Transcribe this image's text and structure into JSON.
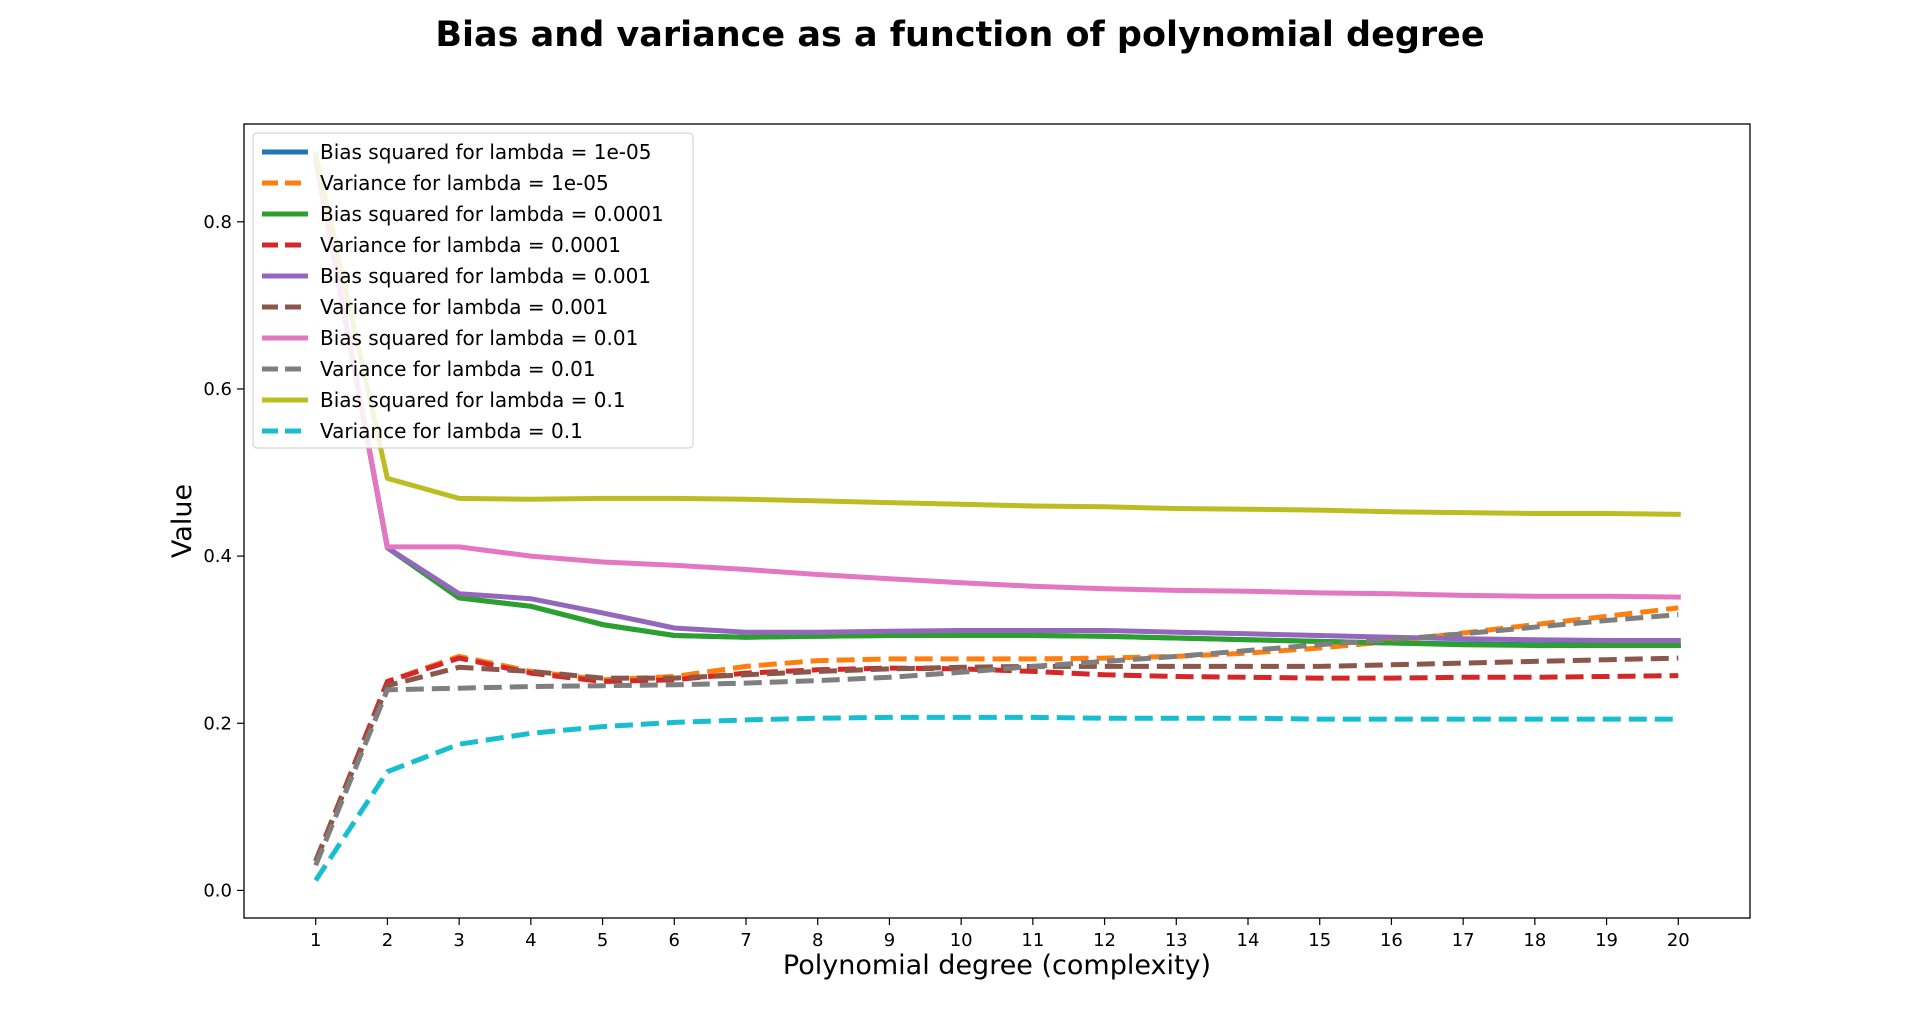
{
  "chart_data": {
    "type": "line",
    "title": "Bias and variance as a function of polynomial degree",
    "xlabel": "Polynomial degree (complexity)",
    "ylabel": "Value",
    "x": [
      1,
      2,
      3,
      4,
      5,
      6,
      7,
      8,
      9,
      10,
      11,
      12,
      13,
      14,
      15,
      16,
      17,
      18,
      19,
      20
    ],
    "xlim": [
      0.0,
      21.0
    ],
    "ylim": [
      -0.033,
      0.917
    ],
    "yticks": [
      0.0,
      0.2,
      0.4,
      0.6,
      0.8
    ],
    "ytick_labels": [
      "0.0",
      "0.2",
      "0.4",
      "0.6",
      "0.8"
    ],
    "xticks": [
      1,
      2,
      3,
      4,
      5,
      6,
      7,
      8,
      9,
      10,
      11,
      12,
      13,
      14,
      15,
      16,
      17,
      18,
      19,
      20
    ],
    "xtick_labels": [
      "1",
      "2",
      "3",
      "4",
      "5",
      "6",
      "7",
      "8",
      "9",
      "10",
      "11",
      "12",
      "13",
      "14",
      "15",
      "16",
      "17",
      "18",
      "19",
      "20"
    ],
    "grid": false,
    "legend_position": "upper-left",
    "series": [
      {
        "name": "Bias squared for lambda = 1e-05",
        "color": "#1f77b4",
        "style": "solid",
        "values": [
          0.875,
          0.41,
          0.35,
          0.34,
          0.318,
          0.305,
          0.303,
          0.304,
          0.305,
          0.305,
          0.305,
          0.304,
          0.302,
          0.3,
          0.298,
          0.296,
          0.295,
          0.294,
          0.294,
          0.293
        ]
      },
      {
        "name": "Variance for lambda = 1e-05",
        "color": "#ff7f0e",
        "style": "dashed",
        "values": [
          0.035,
          0.25,
          0.28,
          0.262,
          0.252,
          0.256,
          0.268,
          0.275,
          0.277,
          0.277,
          0.277,
          0.278,
          0.28,
          0.284,
          0.29,
          0.298,
          0.308,
          0.318,
          0.328,
          0.338
        ]
      },
      {
        "name": "Bias squared for lambda = 0.0001",
        "color": "#2ca02c",
        "style": "solid",
        "values": [
          0.875,
          0.41,
          0.35,
          0.34,
          0.318,
          0.305,
          0.303,
          0.304,
          0.305,
          0.305,
          0.305,
          0.304,
          0.302,
          0.3,
          0.298,
          0.296,
          0.294,
          0.293,
          0.293,
          0.293
        ]
      },
      {
        "name": "Variance for lambda = 0.0001",
        "color": "#d62728",
        "style": "dashed",
        "values": [
          0.035,
          0.25,
          0.278,
          0.26,
          0.25,
          0.252,
          0.26,
          0.264,
          0.266,
          0.265,
          0.262,
          0.258,
          0.256,
          0.255,
          0.254,
          0.254,
          0.255,
          0.255,
          0.256,
          0.257
        ]
      },
      {
        "name": "Bias squared for lambda = 0.001",
        "color": "#9467bd",
        "style": "solid",
        "values": [
          0.875,
          0.41,
          0.355,
          0.349,
          0.332,
          0.314,
          0.309,
          0.309,
          0.31,
          0.311,
          0.311,
          0.311,
          0.309,
          0.307,
          0.305,
          0.303,
          0.301,
          0.3,
          0.299,
          0.299
        ]
      },
      {
        "name": "Variance for lambda = 0.001",
        "color": "#8c564b",
        "style": "dashed",
        "values": [
          0.035,
          0.245,
          0.267,
          0.262,
          0.254,
          0.254,
          0.258,
          0.262,
          0.265,
          0.267,
          0.268,
          0.268,
          0.268,
          0.268,
          0.268,
          0.27,
          0.272,
          0.274,
          0.276,
          0.278
        ]
      },
      {
        "name": "Bias squared for lambda = 0.01",
        "color": "#e377c2",
        "style": "solid",
        "values": [
          0.875,
          0.411,
          0.411,
          0.4,
          0.393,
          0.389,
          0.384,
          0.378,
          0.373,
          0.368,
          0.364,
          0.361,
          0.359,
          0.358,
          0.356,
          0.355,
          0.353,
          0.352,
          0.352,
          0.351
        ]
      },
      {
        "name": "Variance for lambda = 0.01",
        "color": "#7f7f7f",
        "style": "dashed",
        "values": [
          0.03,
          0.24,
          0.242,
          0.244,
          0.245,
          0.246,
          0.248,
          0.251,
          0.255,
          0.261,
          0.268,
          0.274,
          0.28,
          0.287,
          0.294,
          0.3,
          0.307,
          0.315,
          0.323,
          0.33
        ]
      },
      {
        "name": "Bias squared for lambda = 0.1",
        "color": "#bcbd22",
        "style": "solid",
        "values": [
          0.88,
          0.493,
          0.469,
          0.468,
          0.469,
          0.469,
          0.468,
          0.466,
          0.464,
          0.462,
          0.46,
          0.459,
          0.457,
          0.456,
          0.455,
          0.453,
          0.452,
          0.451,
          0.451,
          0.45
        ]
      },
      {
        "name": "Variance for lambda = 0.1",
        "color": "#17becf",
        "style": "dashed",
        "values": [
          0.012,
          0.142,
          0.175,
          0.188,
          0.196,
          0.201,
          0.204,
          0.206,
          0.207,
          0.207,
          0.207,
          0.206,
          0.206,
          0.206,
          0.205,
          0.205,
          0.205,
          0.205,
          0.205,
          0.205
        ]
      }
    ]
  }
}
